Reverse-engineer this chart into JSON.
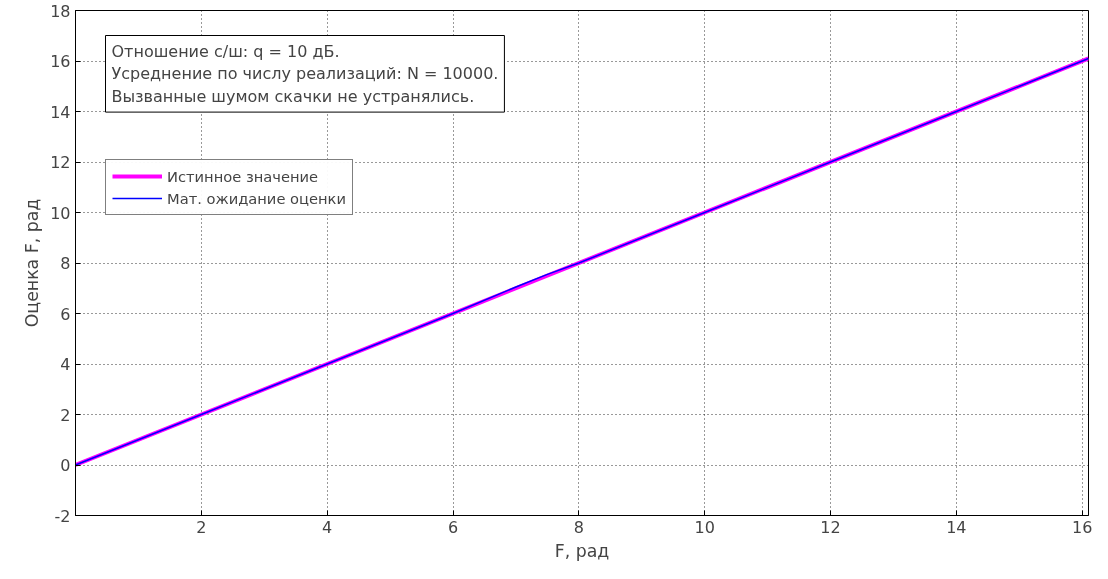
{
  "chart_data": {
    "type": "line",
    "xlabel": "F, рад",
    "ylabel": "Оценка F, рад",
    "annotations": [
      "Отношение с/ш: q = 10 дБ.",
      "Усреднение по числу реализаций: N = 10000.",
      "Вызванные шумом скачки не устранялись."
    ],
    "series": [
      {
        "name": "Истинное значение",
        "color": "#ff00ff",
        "x": [
          0,
          16.1
        ],
        "values": [
          0,
          16.1
        ]
      },
      {
        "name": "Мат. ожидание оценки",
        "color": "#0000ff",
        "x": [
          0,
          2,
          4,
          6,
          7,
          7.5,
          8,
          10,
          12,
          14,
          16.1
        ],
        "values": [
          0,
          2,
          4,
          6,
          7.05,
          7.55,
          8,
          10,
          12,
          14,
          16.1
        ]
      }
    ],
    "xlim": [
      0,
      16.1
    ],
    "ylim": [
      -2,
      18
    ],
    "xticks": [
      2,
      4,
      6,
      8,
      10,
      12,
      14,
      16
    ],
    "yticks": [
      -2,
      0,
      2,
      4,
      6,
      8,
      10,
      12,
      14,
      16,
      18
    ],
    "grid": true,
    "legend": "top left",
    "marker": "none",
    "line_style": "solid"
  }
}
